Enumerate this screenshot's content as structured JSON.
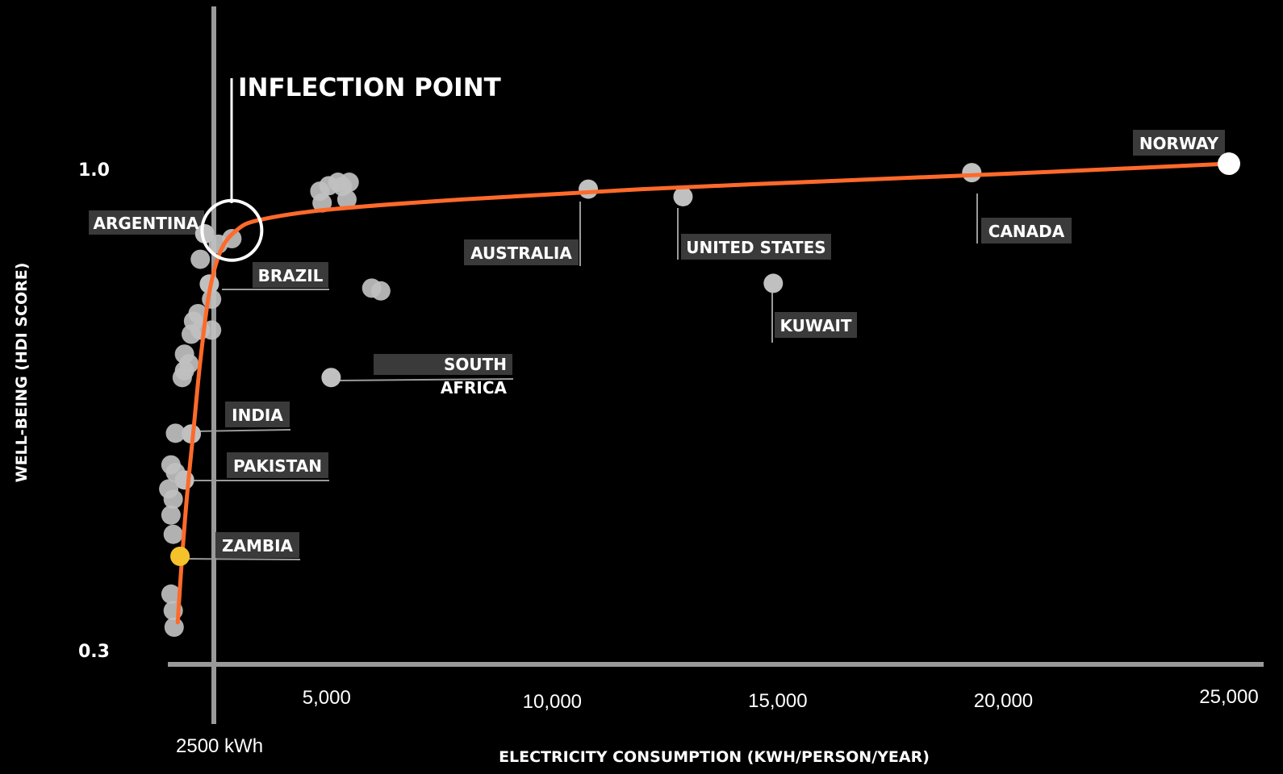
{
  "chart_data": {
    "type": "scatter",
    "xlabel": "ELECTRICITY CONSUMPTION (KWH/PERSON/YEAR)",
    "ylabel": "WELL-BEING (HDI SCORE)",
    "x_ticks": [
      {
        "value": 5000,
        "label": "5,000"
      },
      {
        "value": 10000,
        "label": "10,000"
      },
      {
        "value": 15000,
        "label": "15,000"
      },
      {
        "value": 20000,
        "label": "20,000"
      },
      {
        "value": 25000,
        "label": "25,000"
      }
    ],
    "y_ticks": [
      {
        "value": 1.0,
        "label": "1.0"
      },
      {
        "value": 0.3,
        "label": "0.3"
      }
    ],
    "xlim": [
      0,
      26000
    ],
    "ylim": [
      0.3,
      1.0
    ],
    "reference_line": {
      "x": 2500,
      "label": "2500 kWh"
    },
    "inflection": {
      "x": 2900,
      "y": 0.91,
      "label": "INFLECTION POINT"
    },
    "colors": {
      "background": "#000000",
      "curve": "#ff6a2a",
      "point": "#c0c0c0",
      "highlight": "#f5c22b",
      "endpoint": "#ffffff",
      "label_bg": "#3a3a3a",
      "axis": "#9a9a9a"
    },
    "curve": [
      {
        "x": 1700,
        "y": 0.34
      },
      {
        "x": 1780,
        "y": 0.42
      },
      {
        "x": 1900,
        "y": 0.52
      },
      {
        "x": 2050,
        "y": 0.62
      },
      {
        "x": 2200,
        "y": 0.72
      },
      {
        "x": 2400,
        "y": 0.82
      },
      {
        "x": 2650,
        "y": 0.88
      },
      {
        "x": 3000,
        "y": 0.91
      },
      {
        "x": 3500,
        "y": 0.925
      },
      {
        "x": 5000,
        "y": 0.94
      },
      {
        "x": 8000,
        "y": 0.955
      },
      {
        "x": 12000,
        "y": 0.97
      },
      {
        "x": 17000,
        "y": 0.984
      },
      {
        "x": 21000,
        "y": 0.995
      },
      {
        "x": 25000,
        "y": 1.007
      }
    ],
    "labeled_points": [
      {
        "name": "NORWAY",
        "x": 25000,
        "y": 1.007,
        "style": "endpoint"
      },
      {
        "name": "CANADA",
        "x": 19300,
        "y": 0.994,
        "style": "point"
      },
      {
        "name": "UNITED STATES",
        "x": 12900,
        "y": 0.959,
        "style": "point"
      },
      {
        "name": "AUSTRALIA",
        "x": 10800,
        "y": 0.97,
        "style": "point"
      },
      {
        "name": "KUWAIT",
        "x": 14900,
        "y": 0.833,
        "style": "point"
      },
      {
        "name": "SOUTH AFRICA",
        "x": 5100,
        "y": 0.696,
        "style": "point"
      },
      {
        "name": "ARGENTINA",
        "x": 2300,
        "y": 0.905,
        "style": "point"
      },
      {
        "name": "BRAZIL",
        "x": 2400,
        "y": 0.832,
        "style": "point"
      },
      {
        "name": "INDIA",
        "x": 2000,
        "y": 0.614,
        "style": "point"
      },
      {
        "name": "PAKISTAN",
        "x": 1850,
        "y": 0.547,
        "style": "point"
      },
      {
        "name": "ZAMBIA",
        "x": 1750,
        "y": 0.436,
        "style": "highlight"
      }
    ],
    "points": [
      {
        "x": 4850,
        "y": 0.967
      },
      {
        "x": 5050,
        "y": 0.975
      },
      {
        "x": 5250,
        "y": 0.98
      },
      {
        "x": 5350,
        "y": 0.974
      },
      {
        "x": 5500,
        "y": 0.98
      },
      {
        "x": 4900,
        "y": 0.95
      },
      {
        "x": 5450,
        "y": 0.955
      },
      {
        "x": 6000,
        "y": 0.826
      },
      {
        "x": 6200,
        "y": 0.822
      },
      {
        "x": 2600,
        "y": 0.89
      },
      {
        "x": 2900,
        "y": 0.898
      },
      {
        "x": 2200,
        "y": 0.868
      },
      {
        "x": 2450,
        "y": 0.81
      },
      {
        "x": 2150,
        "y": 0.789
      },
      {
        "x": 2050,
        "y": 0.778
      },
      {
        "x": 2000,
        "y": 0.759
      },
      {
        "x": 2200,
        "y": 0.765
      },
      {
        "x": 2450,
        "y": 0.765
      },
      {
        "x": 1850,
        "y": 0.73
      },
      {
        "x": 1950,
        "y": 0.716
      },
      {
        "x": 1800,
        "y": 0.696
      },
      {
        "x": 1850,
        "y": 0.706
      },
      {
        "x": 1650,
        "y": 0.615
      },
      {
        "x": 1550,
        "y": 0.569
      },
      {
        "x": 1650,
        "y": 0.558
      },
      {
        "x": 1500,
        "y": 0.534
      },
      {
        "x": 1600,
        "y": 0.519
      },
      {
        "x": 1550,
        "y": 0.496
      },
      {
        "x": 1600,
        "y": 0.468
      },
      {
        "x": 1550,
        "y": 0.381
      },
      {
        "x": 1600,
        "y": 0.357
      },
      {
        "x": 1620,
        "y": 0.333
      }
    ]
  }
}
